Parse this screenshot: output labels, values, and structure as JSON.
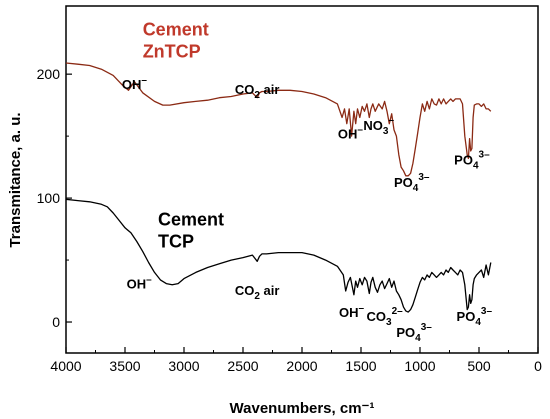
{
  "chart_data": {
    "type": "line",
    "xlabel": "Wavenumbers, cm⁻¹",
    "ylabel": "Transmitance, a. u.",
    "xlim": [
      4000,
      0
    ],
    "ylim": [
      -25,
      255
    ],
    "xticks": [
      4000,
      3500,
      3000,
      2500,
      2000,
      1500,
      1000,
      500,
      0
    ],
    "yticks": [
      0,
      100,
      200
    ],
    "grid": false,
    "series": [
      {
        "name": "Cement ZnTCP",
        "label_lines": [
          "Cement",
          "ZnTCP"
        ],
        "color": "#8b2a14",
        "label_color": "#c0392b",
        "x": [
          4000,
          3900,
          3800,
          3700,
          3600,
          3520,
          3470,
          3420,
          3350,
          3250,
          3180,
          3120,
          3000,
          2900,
          2800,
          2700,
          2600,
          2500,
          2420,
          2380,
          2360,
          2340,
          2300,
          2200,
          2100,
          2000,
          1900,
          1800,
          1700,
          1660,
          1640,
          1620,
          1600,
          1580,
          1560,
          1545,
          1530,
          1510,
          1490,
          1470,
          1450,
          1430,
          1415,
          1400,
          1380,
          1350,
          1320,
          1300,
          1280,
          1260,
          1240,
          1220,
          1200,
          1180,
          1160,
          1140,
          1120,
          1100,
          1080,
          1060,
          1040,
          1020,
          1000,
          980,
          960,
          940,
          920,
          900,
          880,
          860,
          840,
          820,
          800,
          780,
          760,
          740,
          720,
          700,
          680,
          660,
          640,
          620,
          600,
          590,
          580,
          570,
          560,
          550,
          540,
          520,
          500,
          480,
          460,
          440,
          420,
          400
        ],
        "y": [
          209,
          208,
          207,
          204,
          199,
          191,
          187,
          194,
          185,
          178,
          175,
          175,
          177,
          178,
          179,
          181,
          182,
          184,
          185,
          181,
          185,
          186,
          186,
          187,
          187,
          186,
          184,
          181,
          176,
          165,
          172,
          160,
          172,
          150,
          170,
          160,
          172,
          165,
          174,
          170,
          176,
          165,
          172,
          176,
          170,
          176,
          172,
          178,
          170,
          160,
          168,
          155,
          150,
          135,
          125,
          122,
          118,
          118,
          120,
          128,
          140,
          152,
          165,
          176,
          170,
          178,
          172,
          180,
          176,
          175,
          180,
          176,
          180,
          176,
          178,
          180,
          178,
          180,
          180,
          180,
          176,
          150,
          135,
          132,
          148,
          138,
          140,
          165,
          175,
          176,
          176,
          174,
          176,
          172,
          172,
          170
        ]
      },
      {
        "name": "Cement TCP",
        "label_lines": [
          "Cement",
          "TCP"
        ],
        "color": "#000000",
        "label_color": "#000000",
        "x": [
          4000,
          3900,
          3800,
          3700,
          3650,
          3600,
          3550,
          3500,
          3450,
          3400,
          3350,
          3300,
          3250,
          3200,
          3150,
          3100,
          3050,
          3000,
          2900,
          2800,
          2700,
          2600,
          2500,
          2420,
          2380,
          2360,
          2340,
          2300,
          2200,
          2100,
          2000,
          1900,
          1800,
          1700,
          1650,
          1630,
          1610,
          1590,
          1560,
          1545,
          1530,
          1510,
          1490,
          1470,
          1450,
          1430,
          1415,
          1400,
          1380,
          1360,
          1340,
          1320,
          1300,
          1280,
          1260,
          1240,
          1220,
          1200,
          1180,
          1160,
          1140,
          1120,
          1100,
          1080,
          1060,
          1040,
          1020,
          1000,
          980,
          960,
          940,
          920,
          900,
          880,
          860,
          840,
          820,
          800,
          780,
          760,
          740,
          720,
          700,
          680,
          660,
          640,
          620,
          600,
          590,
          580,
          570,
          560,
          550,
          540,
          520,
          500,
          480,
          460,
          440,
          420,
          400
        ],
        "y": [
          99,
          98,
          97,
          95,
          93,
          88,
          82,
          76,
          72,
          65,
          57,
          48,
          40,
          34,
          31,
          30,
          31,
          35,
          40,
          44,
          47,
          50,
          52,
          54,
          49,
          53,
          55,
          55,
          56,
          56,
          56,
          54,
          50,
          45,
          38,
          25,
          32,
          36,
          22,
          33,
          28,
          35,
          30,
          36,
          33,
          23,
          32,
          36,
          28,
          24,
          30,
          33,
          27,
          31,
          35,
          28,
          33,
          25,
          22,
          18,
          12,
          9,
          8,
          10,
          14,
          20,
          26,
          32,
          36,
          34,
          38,
          36,
          40,
          38,
          36,
          38,
          40,
          38,
          42,
          40,
          44,
          42,
          40,
          38,
          42,
          40,
          30,
          10,
          12,
          22,
          15,
          18,
          30,
          35,
          38,
          40,
          42,
          36,
          46,
          38,
          48
        ]
      }
    ],
    "annotations": [
      {
        "base": "OH",
        "sub": "",
        "sup": "–",
        "suffix": "",
        "x": 3420,
        "y": 188
      },
      {
        "base": "CO",
        "sub": "2",
        "sup": "",
        "suffix": " air",
        "x": 2380,
        "y": 184
      },
      {
        "base": "OH",
        "sub": "",
        "sup": "–",
        "suffix": "",
        "x": 1590,
        "y": 148
      },
      {
        "base": "NO",
        "sub": "3",
        "sup": "–",
        "suffix": "",
        "x": 1350,
        "y": 155
      },
      {
        "base": "PO",
        "sub": "4",
        "sup": "3–",
        "suffix": "",
        "x": 1070,
        "y": 109
      },
      {
        "base": "PO",
        "sub": "4",
        "sup": "3–",
        "suffix": "",
        "x": 560,
        "y": 127
      },
      {
        "base": "OH",
        "sub": "",
        "sup": "–",
        "suffix": "",
        "x": 3380,
        "y": 27
      },
      {
        "base": "CO",
        "sub": "2",
        "sup": "",
        "suffix": " air",
        "x": 2380,
        "y": 22
      },
      {
        "base": "OH",
        "sub": "",
        "sup": "–",
        "suffix": "",
        "x": 1580,
        "y": 4
      },
      {
        "base": "CO",
        "sub": "3",
        "sup": "2–",
        "suffix": "",
        "x": 1300,
        "y": 1
      },
      {
        "base": "PO",
        "sub": "4",
        "sup": "3–",
        "suffix": "",
        "x": 1050,
        "y": -12
      },
      {
        "base": "PO",
        "sub": "4",
        "sup": "3–",
        "suffix": "",
        "x": 540,
        "y": 1
      }
    ],
    "series_labels": [
      {
        "series": 0,
        "x": 3350,
        "y": 231
      },
      {
        "series": 1,
        "x": 3220,
        "y": 78
      }
    ]
  }
}
